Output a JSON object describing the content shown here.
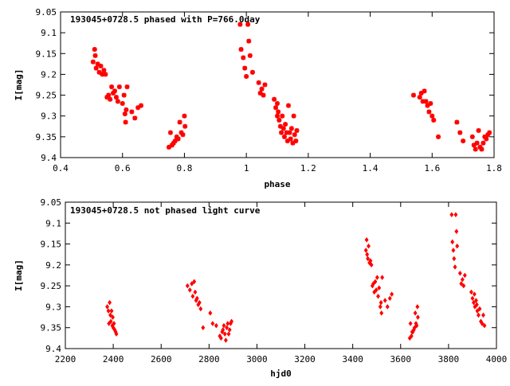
{
  "chart_data": [
    {
      "type": "scatter",
      "title": "193045+0728.5 phased with P=766.0day",
      "xlabel": "phase",
      "ylabel": "I[mag]",
      "xlim": [
        0.4,
        1.8
      ],
      "ylim": [
        9.05,
        9.4
      ],
      "y_inverted": true,
      "grid": false,
      "marker": "asterisk",
      "color": "#ff0000",
      "x_ticks": [
        "0.4",
        "0.6",
        "0.8",
        "1",
        "1.2",
        "1.4",
        "1.6",
        "1.8"
      ],
      "y_ticks": [
        "9.05",
        "9.1",
        "9.15",
        "9.2",
        "9.25",
        "9.3",
        "9.35",
        "9.4"
      ],
      "x_tick_values": [
        0.4,
        0.6,
        0.8,
        1.0,
        1.2,
        1.4,
        1.6,
        1.8
      ],
      "y_tick_values": [
        9.05,
        9.1,
        9.15,
        9.2,
        9.25,
        9.3,
        9.35,
        9.4
      ],
      "series": [
        {
          "points": [
            [
              0.505,
              9.17
            ],
            [
              0.51,
              9.14
            ],
            [
              0.512,
              9.155
            ],
            [
              0.515,
              9.185
            ],
            [
              0.52,
              9.175
            ],
            [
              0.525,
              9.195
            ],
            [
              0.53,
              9.18
            ],
            [
              0.535,
              9.2
            ],
            [
              0.54,
              9.19
            ],
            [
              0.545,
              9.2
            ],
            [
              0.55,
              9.255
            ],
            [
              0.555,
              9.25
            ],
            [
              0.56,
              9.26
            ],
            [
              0.565,
              9.23
            ],
            [
              0.57,
              9.245
            ],
            [
              0.575,
              9.24
            ],
            [
              0.58,
              9.255
            ],
            [
              0.585,
              9.265
            ],
            [
              0.59,
              9.23
            ],
            [
              0.6,
              9.27
            ],
            [
              0.605,
              9.25
            ],
            [
              0.608,
              9.295
            ],
            [
              0.61,
              9.315
            ],
            [
              0.612,
              9.285
            ],
            [
              0.615,
              9.23
            ],
            [
              0.63,
              9.29
            ],
            [
              0.64,
              9.305
            ],
            [
              0.65,
              9.28
            ],
            [
              0.66,
              9.275
            ],
            [
              0.75,
              9.375
            ],
            [
              0.755,
              9.34
            ],
            [
              0.76,
              9.37
            ],
            [
              0.765,
              9.365
            ],
            [
              0.77,
              9.36
            ],
            [
              0.775,
              9.35
            ],
            [
              0.78,
              9.355
            ],
            [
              0.785,
              9.315
            ],
            [
              0.79,
              9.34
            ],
            [
              0.795,
              9.345
            ],
            [
              0.8,
              9.3
            ],
            [
              0.802,
              9.325
            ],
            [
              0.98,
              9.08
            ],
            [
              0.983,
              9.14
            ],
            [
              0.99,
              9.16
            ],
            [
              0.995,
              9.185
            ],
            [
              1.0,
              9.205
            ],
            [
              1.005,
              9.08
            ],
            [
              1.008,
              9.12
            ],
            [
              1.012,
              9.155
            ],
            [
              1.02,
              9.195
            ],
            [
              1.04,
              9.22
            ],
            [
              1.045,
              9.245
            ],
            [
              1.05,
              9.235
            ],
            [
              1.055,
              9.25
            ],
            [
              1.06,
              9.225
            ],
            [
              1.09,
              9.26
            ],
            [
              1.095,
              9.28
            ],
            [
              1.1,
              9.3
            ],
            [
              1.103,
              9.29
            ],
            [
              1.106,
              9.31
            ],
            [
              1.11,
              9.325
            ],
            [
              1.113,
              9.34
            ],
            [
              1.116,
              9.3
            ],
            [
              1.12,
              9.33
            ],
            [
              1.123,
              9.35
            ],
            [
              1.126,
              9.32
            ],
            [
              1.13,
              9.34
            ],
            [
              1.133,
              9.36
            ],
            [
              1.136,
              9.275
            ],
            [
              1.14,
              9.34
            ],
            [
              1.143,
              9.355
            ],
            [
              1.146,
              9.33
            ],
            [
              1.15,
              9.365
            ],
            [
              1.153,
              9.3
            ],
            [
              1.156,
              9.345
            ],
            [
              1.16,
              9.36
            ],
            [
              1.163,
              9.335
            ],
            [
              1.1,
              9.27
            ],
            [
              1.54,
              9.25
            ],
            [
              1.56,
              9.255
            ],
            [
              1.565,
              9.245
            ],
            [
              1.57,
              9.265
            ],
            [
              1.575,
              9.24
            ],
            [
              1.58,
              9.265
            ],
            [
              1.585,
              9.275
            ],
            [
              1.59,
              9.29
            ],
            [
              1.595,
              9.27
            ],
            [
              1.6,
              9.3
            ],
            [
              1.605,
              9.31
            ],
            [
              1.62,
              9.35
            ],
            [
              1.68,
              9.315
            ],
            [
              1.69,
              9.34
            ],
            [
              1.7,
              9.36
            ],
            [
              1.73,
              9.35
            ],
            [
              1.735,
              9.37
            ],
            [
              1.74,
              9.38
            ],
            [
              1.745,
              9.365
            ],
            [
              1.75,
              9.335
            ],
            [
              1.755,
              9.375
            ],
            [
              1.76,
              9.38
            ],
            [
              1.765,
              9.365
            ],
            [
              1.77,
              9.35
            ],
            [
              1.775,
              9.355
            ],
            [
              1.78,
              9.345
            ],
            [
              1.785,
              9.34
            ]
          ]
        }
      ]
    },
    {
      "type": "scatter",
      "title": "193045+0728.5 not phased light curve",
      "xlabel": "hjd0",
      "ylabel": "I[mag]",
      "xlim": [
        2200,
        4000
      ],
      "ylim": [
        9.05,
        9.4
      ],
      "y_inverted": true,
      "grid": false,
      "marker": "diamond",
      "color": "#ff0000",
      "x_ticks": [
        "2200",
        "2400",
        "2600",
        "2800",
        "3000",
        "3200",
        "3400",
        "3600",
        "3800",
        "4000"
      ],
      "y_ticks": [
        "9.05",
        "9.1",
        "9.15",
        "9.2",
        "9.25",
        "9.3",
        "9.35",
        "9.4"
      ],
      "x_tick_values": [
        2200,
        2400,
        2600,
        2800,
        3000,
        3200,
        3400,
        3600,
        3800,
        4000
      ],
      "y_tick_values": [
        9.05,
        9.1,
        9.15,
        9.2,
        9.25,
        9.3,
        9.35,
        9.4
      ],
      "series": [
        {
          "points": [
            [
              2375,
              9.3
            ],
            [
              2380,
              9.31
            ],
            [
              2382,
              9.34
            ],
            [
              2385,
              9.29
            ],
            [
              2388,
              9.32
            ],
            [
              2390,
              9.335
            ],
            [
              2393,
              9.31
            ],
            [
              2396,
              9.345
            ],
            [
              2398,
              9.325
            ],
            [
              2400,
              9.35
            ],
            [
              2403,
              9.34
            ],
            [
              2406,
              9.355
            ],
            [
              2410,
              9.36
            ],
            [
              2413,
              9.365
            ],
            [
              2710,
              9.25
            ],
            [
              2720,
              9.26
            ],
            [
              2728,
              9.245
            ],
            [
              2732,
              9.275
            ],
            [
              2738,
              9.24
            ],
            [
              2742,
              9.265
            ],
            [
              2746,
              9.285
            ],
            [
              2750,
              9.28
            ],
            [
              2755,
              9.295
            ],
            [
              2760,
              9.29
            ],
            [
              2765,
              9.305
            ],
            [
              2775,
              9.35
            ],
            [
              2805,
              9.315
            ],
            [
              2815,
              9.34
            ],
            [
              2830,
              9.345
            ],
            [
              2845,
              9.37
            ],
            [
              2850,
              9.375
            ],
            [
              2855,
              9.36
            ],
            [
              2858,
              9.355
            ],
            [
              2862,
              9.345
            ],
            [
              2866,
              9.365
            ],
            [
              2870,
              9.38
            ],
            [
              2874,
              9.35
            ],
            [
              2878,
              9.34
            ],
            [
              2882,
              9.365
            ],
            [
              2886,
              9.355
            ],
            [
              2890,
              9.34
            ],
            [
              2894,
              9.335
            ],
            [
              3455,
              9.165
            ],
            [
              3458,
              9.14
            ],
            [
              3460,
              9.175
            ],
            [
              3463,
              9.185
            ],
            [
              3466,
              9.155
            ],
            [
              3470,
              9.195
            ],
            [
              3474,
              9.19
            ],
            [
              3478,
              9.2
            ],
            [
              3482,
              9.25
            ],
            [
              3486,
              9.245
            ],
            [
              3490,
              9.265
            ],
            [
              3494,
              9.24
            ],
            [
              3498,
              9.26
            ],
            [
              3502,
              9.23
            ],
            [
              3506,
              9.275
            ],
            [
              3510,
              9.255
            ],
            [
              3515,
              9.3
            ],
            [
              3518,
              9.29
            ],
            [
              3520,
              9.315
            ],
            [
              3523,
              9.23
            ],
            [
              3535,
              9.285
            ],
            [
              3545,
              9.3
            ],
            [
              3555,
              9.28
            ],
            [
              3563,
              9.27
            ],
            [
              3638,
              9.375
            ],
            [
              3641,
              9.34
            ],
            [
              3645,
              9.37
            ],
            [
              3648,
              9.36
            ],
            [
              3651,
              9.36
            ],
            [
              3655,
              9.355
            ],
            [
              3658,
              9.35
            ],
            [
              3661,
              9.315
            ],
            [
              3664,
              9.34
            ],
            [
              3667,
              9.345
            ],
            [
              3670,
              9.3
            ],
            [
              3672,
              9.325
            ],
            [
              3813,
              9.08
            ],
            [
              3816,
              9.145
            ],
            [
              3820,
              9.165
            ],
            [
              3823,
              9.185
            ],
            [
              3827,
              9.205
            ],
            [
              3830,
              9.08
            ],
            [
              3833,
              9.12
            ],
            [
              3836,
              9.155
            ],
            [
              3848,
              9.22
            ],
            [
              3853,
              9.245
            ],
            [
              3858,
              9.235
            ],
            [
              3863,
              9.25
            ],
            [
              3868,
              9.225
            ],
            [
              3895,
              9.265
            ],
            [
              3900,
              9.28
            ],
            [
              3905,
              9.29
            ],
            [
              3910,
              9.3
            ],
            [
              3915,
              9.285
            ],
            [
              3920,
              9.31
            ],
            [
              3925,
              9.32
            ],
            [
              3930,
              9.305
            ],
            [
              3935,
              9.335
            ],
            [
              3940,
              9.34
            ],
            [
              3945,
              9.32
            ],
            [
              3950,
              9.345
            ],
            [
              3908,
              9.27
            ],
            [
              3918,
              9.295
            ]
          ]
        }
      ]
    }
  ]
}
